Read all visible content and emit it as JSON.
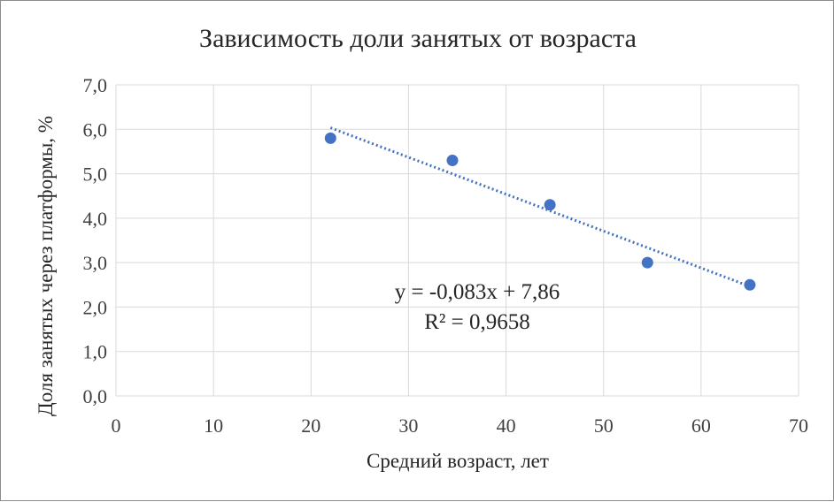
{
  "chart_data": {
    "type": "scatter",
    "title": "Зависимость доли занятых от возраста",
    "xlabel": "Средний возраст, лет",
    "ylabel": "Доля занятых через платформы, %",
    "xlim": [
      0,
      70
    ],
    "ylim": [
      0,
      7
    ],
    "xticks": [
      0,
      10,
      20,
      30,
      40,
      50,
      60,
      70
    ],
    "yticks": [
      0,
      1,
      2,
      3,
      4,
      5,
      6,
      7
    ],
    "x_tick_labels": [
      "0",
      "10",
      "20",
      "30",
      "40",
      "50",
      "60",
      "70"
    ],
    "y_tick_labels": [
      "0,0",
      "1,0",
      "2,0",
      "3,0",
      "4,0",
      "5,0",
      "6,0",
      "7,0"
    ],
    "grid": true,
    "point_color": "#4472C4",
    "trend_color": "#4472C4",
    "points": [
      {
        "x": 22,
        "y": 5.8
      },
      {
        "x": 34.5,
        "y": 5.3
      },
      {
        "x": 44.5,
        "y": 4.3
      },
      {
        "x": 54.5,
        "y": 3.0
      },
      {
        "x": 65,
        "y": 2.5
      }
    ],
    "trendline": {
      "slope": -0.083,
      "intercept": 7.86,
      "x_range": [
        22,
        65
      ],
      "equation_label": "y = -0,083x + 7,86",
      "r2_label": "R² = 0,9658"
    }
  }
}
